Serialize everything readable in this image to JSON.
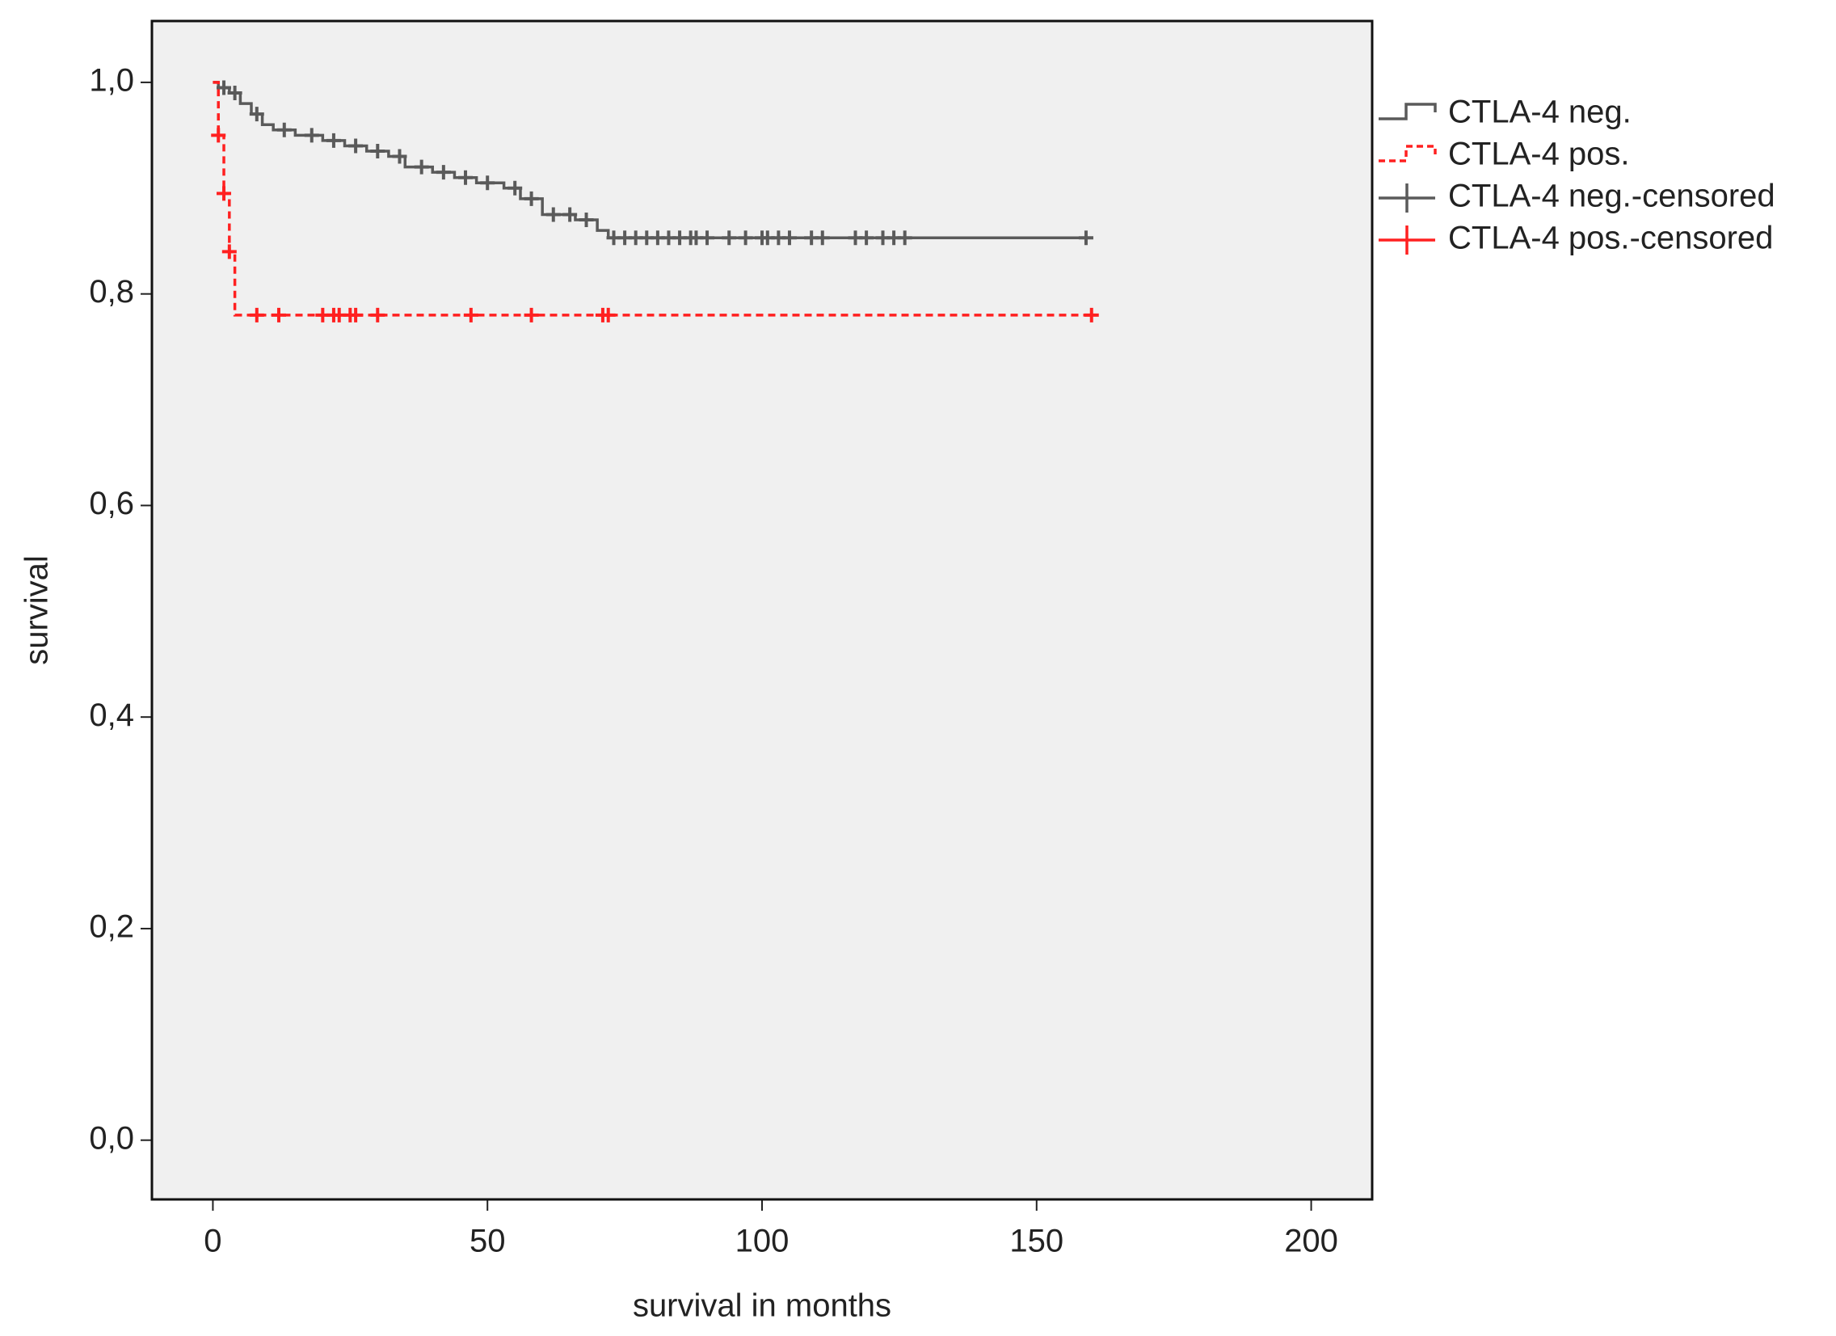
{
  "chart_data": {
    "type": "kaplan-meier",
    "x_label": "survival in months",
    "y_label": "survival",
    "xlim": [
      -11.1,
      211.1
    ],
    "ylim": [
      -0.056,
      1.058
    ],
    "xticks": [
      0,
      50,
      100,
      150,
      200
    ],
    "yticks": [
      {
        "value": 0,
        "label": "0,0"
      },
      {
        "value": 0.2,
        "label": "0,2"
      },
      {
        "value": 0.4,
        "label": "0,4"
      },
      {
        "value": 0.6,
        "label": "0,6"
      },
      {
        "value": 0.8,
        "label": "0,8"
      },
      {
        "value": 1,
        "label": "1,0"
      }
    ],
    "grid": false,
    "legend": "right",
    "series": [
      {
        "name": "CTLA-4 neg.",
        "type": "step",
        "color": "#5a5a5a",
        "line_style": "solid",
        "x": [
          0,
          1,
          3,
          5,
          7,
          9,
          11,
          15,
          20,
          24,
          28,
          32,
          35,
          40,
          44,
          48,
          53,
          56,
          60,
          66,
          70,
          72,
          160
        ],
        "values": [
          1.0,
          0.995,
          0.99,
          0.98,
          0.97,
          0.96,
          0.955,
          0.95,
          0.945,
          0.94,
          0.935,
          0.93,
          0.92,
          0.915,
          0.91,
          0.905,
          0.9,
          0.89,
          0.875,
          0.87,
          0.86,
          0.853,
          0.853
        ]
      },
      {
        "name": "CTLA-4 pos.",
        "type": "step",
        "color": "#ff2020",
        "line_style": "dashed",
        "x": [
          0,
          1,
          2,
          3,
          4,
          160
        ],
        "values": [
          1.0,
          0.95,
          0.895,
          0.84,
          0.78,
          0.78
        ]
      },
      {
        "name": "CTLA-4 neg.-censored",
        "type": "censored",
        "color": "#5a5a5a",
        "x": [
          2,
          4,
          8,
          13,
          18,
          22,
          26,
          30,
          34,
          38,
          42,
          46,
          50,
          55,
          58,
          62,
          65,
          68,
          73,
          75,
          77,
          79,
          81,
          83,
          85,
          87,
          88,
          90,
          94,
          97,
          100,
          101,
          103,
          105,
          109,
          111,
          117,
          119,
          122,
          124,
          126,
          159
        ],
        "values": [
          0.995,
          0.99,
          0.97,
          0.955,
          0.95,
          0.945,
          0.94,
          0.935,
          0.93,
          0.92,
          0.915,
          0.91,
          0.905,
          0.9,
          0.89,
          0.875,
          0.875,
          0.87,
          0.853,
          0.853,
          0.853,
          0.853,
          0.853,
          0.853,
          0.853,
          0.853,
          0.853,
          0.853,
          0.853,
          0.853,
          0.853,
          0.853,
          0.853,
          0.853,
          0.853,
          0.853,
          0.853,
          0.853,
          0.853,
          0.853,
          0.853,
          0.853
        ]
      },
      {
        "name": "CTLA-4 pos.-censored",
        "type": "censored",
        "color": "#ff2020",
        "x": [
          1,
          2,
          3,
          8,
          12,
          20,
          22,
          23,
          25,
          26,
          30,
          47,
          58,
          71,
          72,
          160
        ],
        "values": [
          0.95,
          0.895,
          0.84,
          0.78,
          0.78,
          0.78,
          0.78,
          0.78,
          0.78,
          0.78,
          0.78,
          0.78,
          0.78,
          0.78,
          0.78,
          0.78
        ]
      }
    ]
  }
}
